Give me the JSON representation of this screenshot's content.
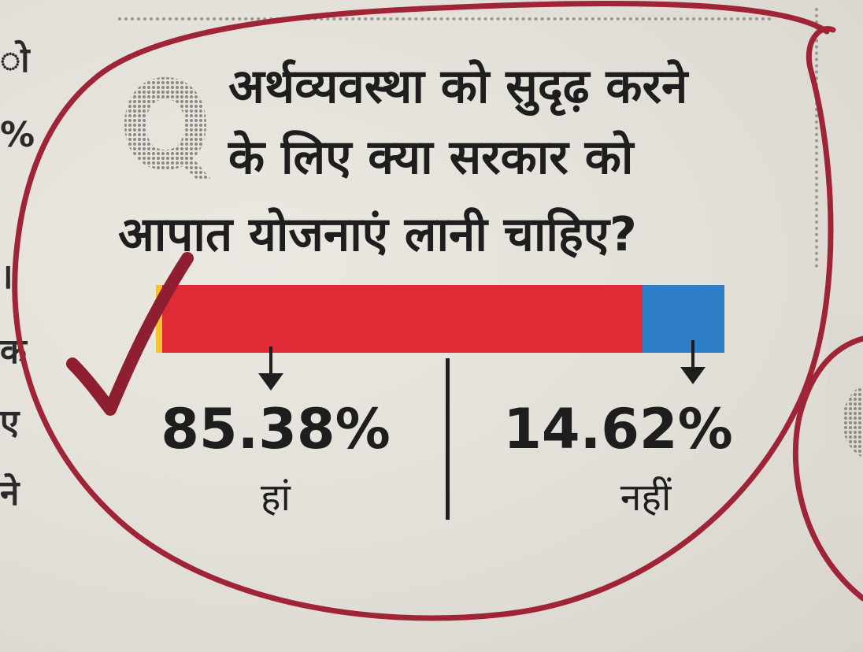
{
  "left_column_fragments": [
    "ो",
    "%",
    "।",
    "क",
    "ए",
    "ने"
  ],
  "question": {
    "line1": "अर्थव्यवस्था को सुदृढ़ करने",
    "line2": "के लिए क्या सरकार को",
    "line3": "आपात योजनाएं लानी चाहिए?"
  },
  "poll": {
    "yes": {
      "percent_text": "85.38%",
      "label": "हां",
      "value": 85.38,
      "color": "#e02a36"
    },
    "no": {
      "percent_text": "14.62%",
      "label": "नहीं",
      "value": 14.62,
      "color": "#2f7fc8"
    }
  },
  "colors": {
    "paper": "#e4e1db",
    "ink_circle": "#9e2436",
    "text": "#1e1e1e",
    "bar_edge": "#f3c532"
  }
}
